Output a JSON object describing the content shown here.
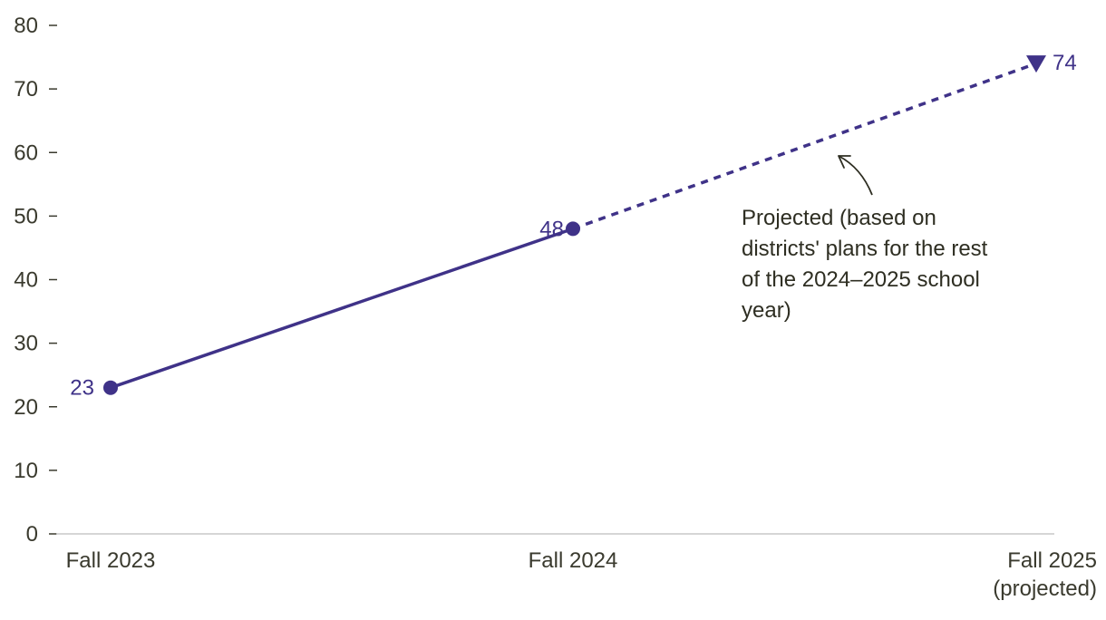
{
  "chart_data": {
    "type": "line",
    "title": "",
    "xlabel": "",
    "ylabel": "",
    "ylim": [
      0,
      80
    ],
    "y_ticks": [
      0,
      10,
      20,
      30,
      40,
      50,
      60,
      70,
      80
    ],
    "y_tick_labels": [
      "0",
      "10",
      "20",
      "30",
      "40",
      "50",
      "60",
      "70",
      "80"
    ],
    "grid": false,
    "categories": [
      {
        "lines": [
          "Fall 2023"
        ]
      },
      {
        "lines": [
          "Fall 2024"
        ]
      },
      {
        "lines": [
          "Fall 2025",
          "(projected)"
        ]
      }
    ],
    "series": [
      {
        "values": [
          23,
          48,
          74
        ],
        "data_labels": [
          "23",
          "48",
          "74"
        ],
        "markers": [
          "circle",
          "circle",
          "triangle-down"
        ],
        "projected_from_index": 1
      }
    ],
    "annotation": {
      "lines": [
        "Projected (based on",
        "districts' plans for the rest",
        "of the 2024–2025 school",
        "year)"
      ]
    },
    "colors": {
      "series": "#3f3288",
      "axis": "#c8c8c8",
      "tick": "#3a3a2e",
      "annotation": "#2e2e22"
    }
  }
}
